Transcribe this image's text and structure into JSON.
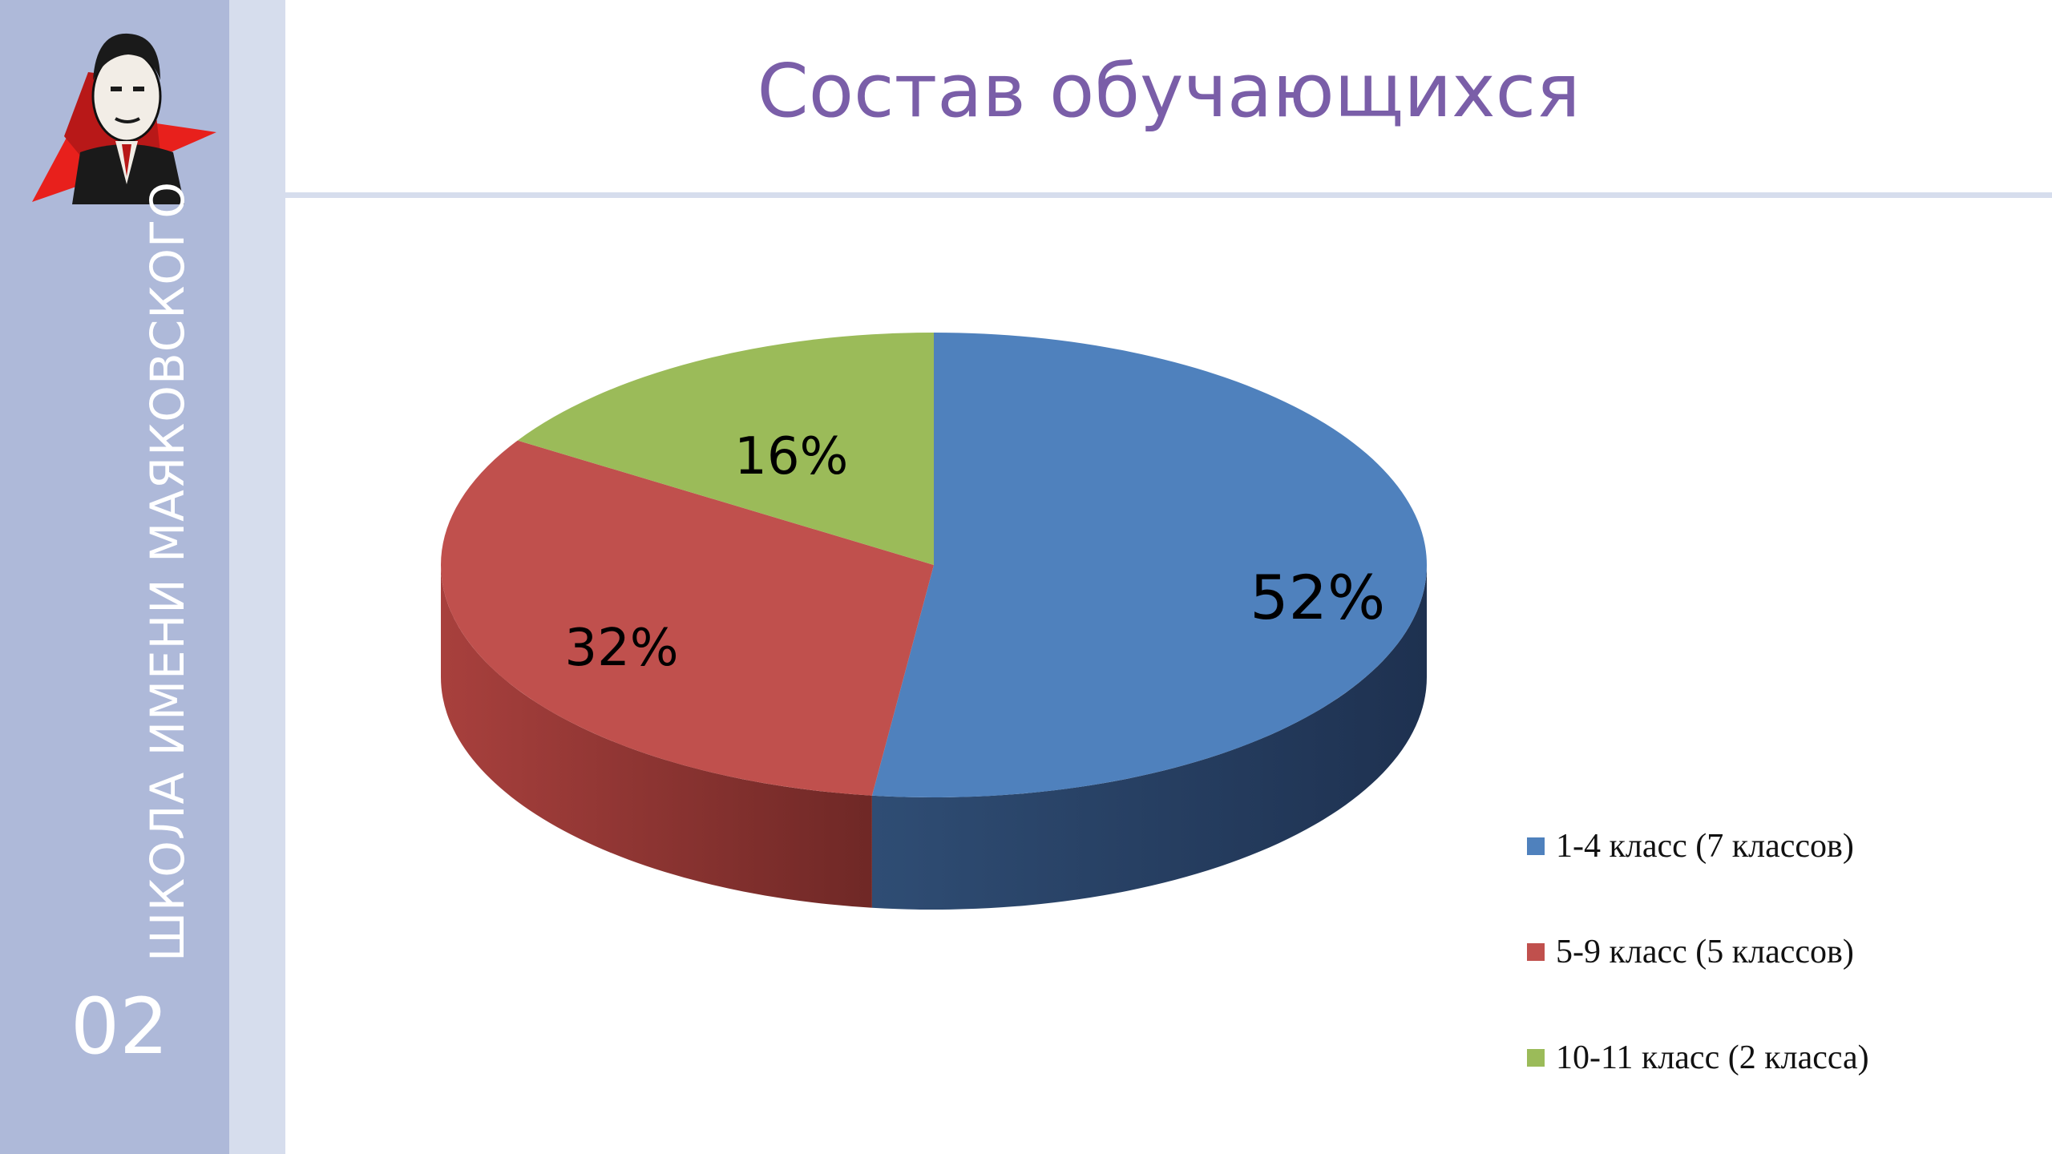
{
  "sidebar": {
    "school_name": "ШКОЛА ИМЕНИ МАЯКОВСКОГО",
    "slide_number": "02",
    "logo_icon": "mayakovsky-portrait-logo",
    "background": "#aeb9d9"
  },
  "slide": {
    "title": "Состав обучающихся",
    "title_color": "#7a5ea8"
  },
  "chart_data": {
    "type": "pie",
    "style": "3d",
    "title": "",
    "categories": [
      "1-4 класс (7 классов)",
      "5-9 класс (5 классов)",
      "10-11 класс (2 класса)"
    ],
    "values": [
      52,
      32,
      16
    ],
    "labels": [
      "52%",
      "32%",
      "16%"
    ],
    "colors": [
      "#4f81bd",
      "#c0504d",
      "#9bbb59"
    ],
    "legend_position": "right"
  }
}
